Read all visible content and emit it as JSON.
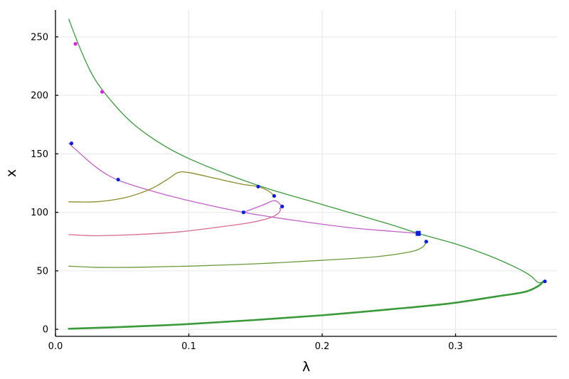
{
  "chart_data": {
    "type": "line",
    "xlabel": "λ",
    "ylabel": "x",
    "xlim": [
      0.0,
      0.376
    ],
    "ylim": [
      -6,
      273
    ],
    "xticks": [
      {
        "value": 0.0,
        "label": "0.0"
      },
      {
        "value": 0.1,
        "label": "0.1"
      },
      {
        "value": 0.2,
        "label": "0.2"
      },
      {
        "value": 0.3,
        "label": "0.3"
      }
    ],
    "yticks": [
      {
        "value": 0,
        "label": "0"
      },
      {
        "value": 50,
        "label": "50"
      },
      {
        "value": 100,
        "label": "100"
      },
      {
        "value": 150,
        "label": "150"
      },
      {
        "value": 200,
        "label": "200"
      },
      {
        "value": 250,
        "label": "250"
      }
    ],
    "grid": true,
    "legend": "none",
    "series": [
      {
        "color": "#3a9a3a",
        "width": 1.3,
        "x": [
          0.01,
          0.02,
          0.03,
          0.045,
          0.06,
          0.08,
          0.1,
          0.13,
          0.16,
          0.19,
          0.22,
          0.25,
          0.272,
          0.3,
          0.325,
          0.345,
          0.356,
          0.362,
          0.366
        ],
        "y": [
          265,
          236,
          213,
          191,
          174,
          158,
          146,
          132,
          120,
          110,
          100,
          90,
          82,
          73,
          63,
          53,
          46,
          40,
          41
        ]
      },
      {
        "color": "#3a9a3a",
        "width": 2.6,
        "x": [
          0.01,
          0.05,
          0.1,
          0.15,
          0.2,
          0.25,
          0.295,
          0.33,
          0.352,
          0.362,
          0.366
        ],
        "y": [
          0.5,
          2,
          4.5,
          8,
          12,
          17,
          22,
          28,
          32,
          37,
          41
        ]
      },
      {
        "color": "#c060c8",
        "width": 1.3,
        "x": [
          0.01,
          0.03,
          0.046,
          0.07,
          0.1,
          0.141,
          0.18,
          0.22,
          0.25,
          0.272
        ],
        "y": [
          159,
          139,
          128,
          119,
          110,
          100,
          93,
          87,
          84,
          82
        ]
      },
      {
        "color": "#c060c8",
        "width": 1.3,
        "x": [
          0.141,
          0.155,
          0.164,
          0.169,
          0.168
        ],
        "y": [
          100,
          106,
          110,
          106,
          103
        ]
      },
      {
        "color": "#d86a8a",
        "width": 1.3,
        "x": [
          0.01,
          0.03,
          0.06,
          0.09,
          0.12,
          0.145,
          0.16,
          0.167,
          0.169
        ],
        "y": [
          81,
          80,
          81,
          83,
          87,
          91,
          95,
          99,
          103
        ]
      },
      {
        "color": "#8a8a28",
        "width": 1.3,
        "x": [
          0.01,
          0.03,
          0.05,
          0.065,
          0.075,
          0.085,
          0.092,
          0.1,
          0.12,
          0.14,
          0.152,
          0.16,
          0.164
        ],
        "y": [
          109,
          109,
          112,
          117,
          122,
          129,
          134,
          134,
          129,
          124,
          122,
          118,
          114
        ]
      },
      {
        "color": "#6a9a3a",
        "width": 1.3,
        "x": [
          0.01,
          0.03,
          0.06,
          0.1,
          0.15,
          0.2,
          0.24,
          0.265,
          0.275,
          0.278
        ],
        "y": [
          54,
          53,
          53,
          54,
          56,
          59,
          62,
          66,
          70,
          75
        ]
      }
    ],
    "markers": [
      {
        "x": 0.015,
        "y": 244,
        "color": "#e21ce2",
        "shape": "circle"
      },
      {
        "x": 0.035,
        "y": 203,
        "color": "#e21ce2",
        "shape": "circle"
      },
      {
        "x": 0.012,
        "y": 159,
        "color": "#0b1de0",
        "shape": "circle"
      },
      {
        "x": 0.047,
        "y": 128,
        "color": "#0b1de0",
        "shape": "circle"
      },
      {
        "x": 0.141,
        "y": 100,
        "color": "#0b1de0",
        "shape": "circle"
      },
      {
        "x": 0.152,
        "y": 122,
        "color": "#0b1de0",
        "shape": "circle"
      },
      {
        "x": 0.164,
        "y": 114,
        "color": "#0b1de0",
        "shape": "circle"
      },
      {
        "x": 0.17,
        "y": 105,
        "color": "#0b1de0",
        "shape": "circle"
      },
      {
        "x": 0.278,
        "y": 75,
        "color": "#0b1de0",
        "shape": "circle"
      },
      {
        "x": 0.367,
        "y": 41,
        "color": "#0b1de0",
        "shape": "circle"
      },
      {
        "x": 0.272,
        "y": 82,
        "color": "#0b1de0",
        "shape": "square"
      }
    ]
  }
}
